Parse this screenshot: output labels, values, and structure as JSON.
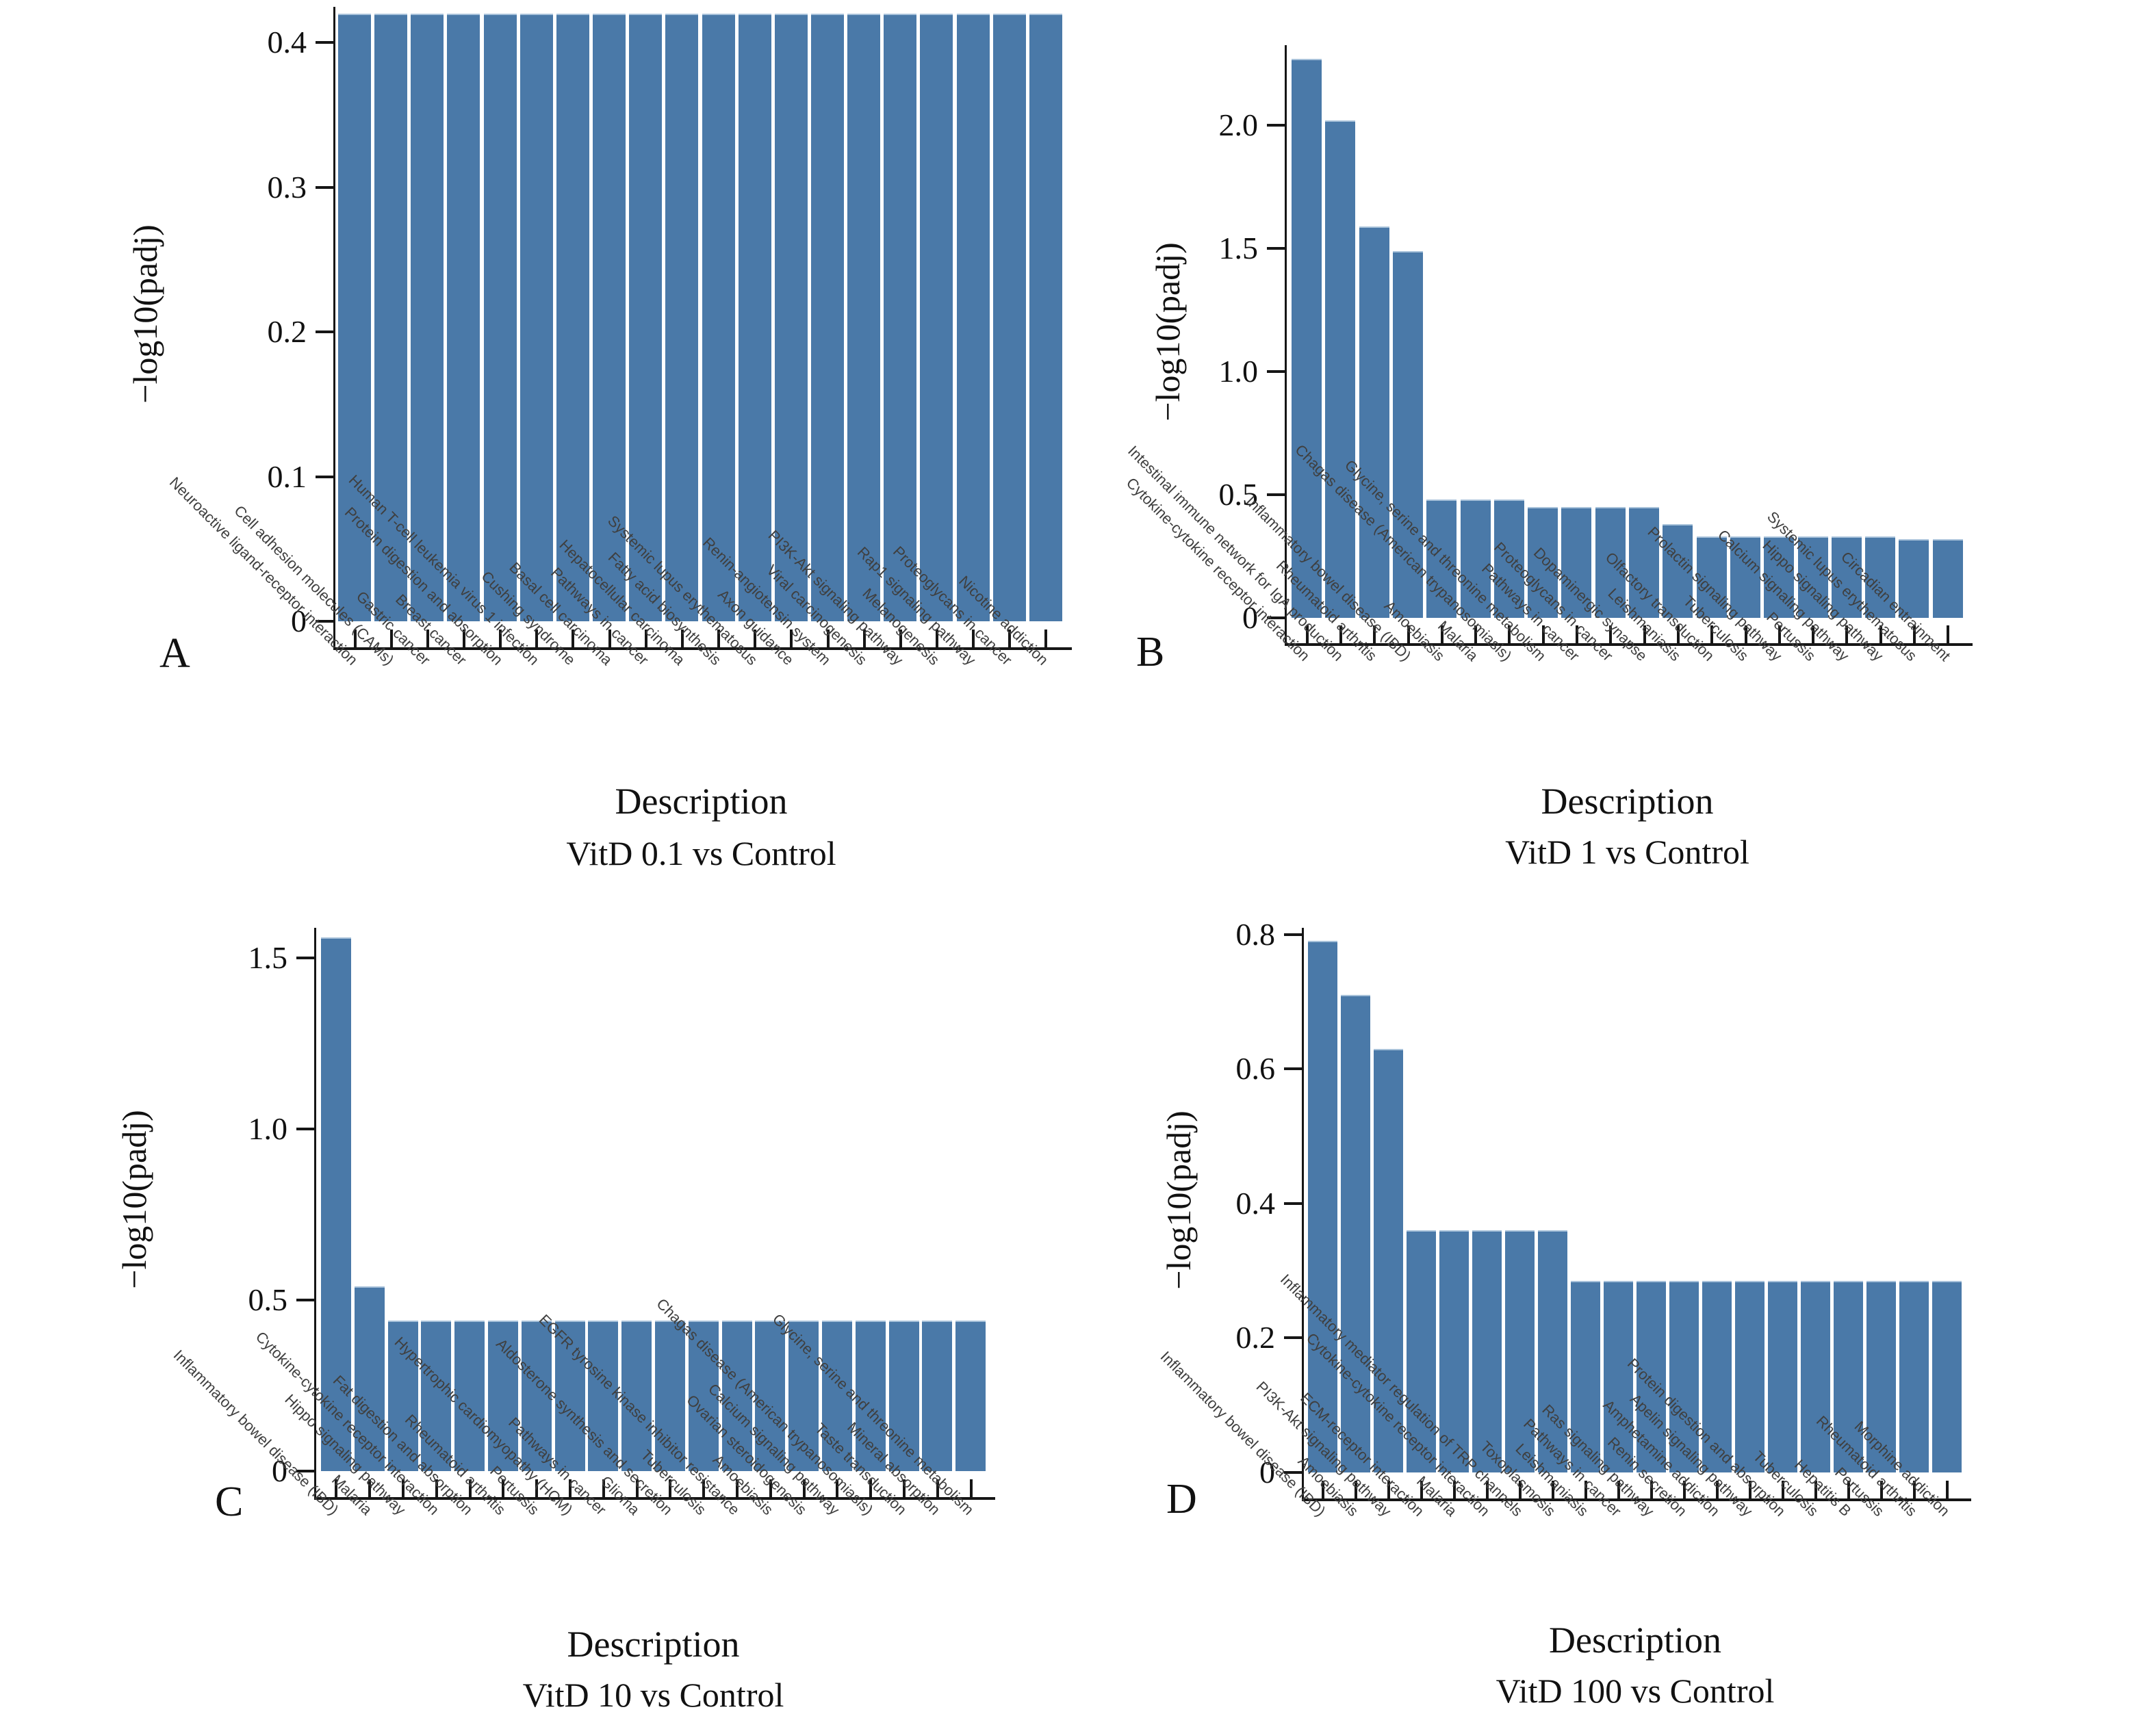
{
  "figure": {
    "background": "#ffffff",
    "bar_color": "#4a79a8",
    "axis_color": "#161616",
    "category_label_color": "#3f3f3f",
    "panel_letters": [
      "A",
      "B",
      "C",
      "D"
    ]
  },
  "chart_data": [
    {
      "type": "bar",
      "panel": "A",
      "title": "VitD 0.1 vs Control",
      "xlabel": "Description",
      "ylabel": "−log10(padj)",
      "ylim": [
        0,
        0.43
      ],
      "grid": false,
      "legend": "none",
      "ytick_labels": [
        "0",
        "0.1",
        "0.2",
        "0.3",
        "0.4"
      ],
      "ytick_values": [
        0,
        0.1,
        0.2,
        0.3,
        0.4
      ],
      "categories": [
        "Neuroactive ligand-receptor interaction",
        "Cell adhesion molecules (CAMs)",
        "Gastric cancer",
        "Breast cancer",
        "Protein digestion and absorption",
        "Human T-cell leukemia virus 1 infection",
        "Cushing syndrome",
        "Basal cell carcinoma",
        "Pathways in cancer",
        "Hepatocellular carcinoma",
        "Fatty acid biosynthesis",
        "Systemic lupus erythematosus",
        "Axon guidance",
        "Renin-angiotensin system",
        "Viral carcinogenesis",
        "PI3K-Akt signaling pathway",
        "Melanogenesis",
        "Rap1 signaling pathway",
        "Proteoglycans in cancer",
        "Nicotine addiction"
      ],
      "values": [
        0.42,
        0.42,
        0.42,
        0.42,
        0.42,
        0.42,
        0.42,
        0.42,
        0.42,
        0.42,
        0.42,
        0.42,
        0.42,
        0.42,
        0.42,
        0.42,
        0.42,
        0.42,
        0.42,
        0.42
      ]
    },
    {
      "type": "bar",
      "panel": "B",
      "title": "VitD 1 vs Control",
      "xlabel": "Description",
      "ylabel": "−log10(padj)",
      "ylim": [
        0,
        2.33
      ],
      "grid": false,
      "legend": "none",
      "ytick_labels": [
        "0",
        "0.5",
        "1.0",
        "1.5",
        "2.0"
      ],
      "ytick_values": [
        0,
        0.5,
        1.0,
        1.5,
        2.0
      ],
      "categories": [
        "Cytokine-cytokine receptor interaction",
        "Intestinal immune network for IgA production",
        "Rheumatoid arthritis",
        "Inflammatory bowel disease (IBD)",
        "Amoebiasis",
        "Malaria",
        "Chagas disease (American trypanosomiasis)",
        "Glycine, serine and threonine metabolism",
        "Pathways in cancer",
        "Proteoglycans in cancer",
        "Dopaminergic synapse",
        "Leishmaniasis",
        "Olfactory transduction",
        "Tuberculosis",
        "Prolactin signaling pathway",
        "Pertussis",
        "Calcium signaling pathway",
        "Hippo signaling pathway",
        "Systemic lupus erythematosus",
        "Circadian entrainment"
      ],
      "values": [
        2.27,
        2.02,
        1.59,
        1.49,
        0.48,
        0.48,
        0.48,
        0.45,
        0.45,
        0.45,
        0.45,
        0.38,
        0.33,
        0.33,
        0.33,
        0.33,
        0.33,
        0.33,
        0.32,
        0.32
      ]
    },
    {
      "type": "bar",
      "panel": "C",
      "title": "VitD 10 vs Control",
      "xlabel": "Description",
      "ylabel": "−log10(padj)",
      "ylim": [
        0,
        1.6
      ],
      "grid": false,
      "legend": "none",
      "ytick_labels": [
        "0",
        "0.5",
        "1.0",
        "1.5"
      ],
      "ytick_values": [
        0,
        0.5,
        1.0,
        1.5
      ],
      "categories": [
        "Inflammatory bowel disease (IBD)",
        "Malaria",
        "Hippo signaling pathway",
        "Cytokine-cytokine receptor interaction",
        "Fat digestion and absorption",
        "Rheumatoid arthritis",
        "Pertussis",
        "Hypertrophic cardiomyopathy (HCM)",
        "Pathways in cancer",
        "Glioma",
        "Aldosterone synthesis and secretion",
        "Tuberculosis",
        "EGFR tyrosine kinase inhibitor resistance",
        "Amoebiasis",
        "Ovarian steroidogenesis",
        "Calcium signaling pathway",
        "Chagas disease (American trypanosomiasis)",
        "Taste transduction",
        "Mineral absorption",
        "Glycine, serine and threonine metabolism"
      ],
      "values": [
        1.56,
        0.54,
        0.44,
        0.44,
        0.44,
        0.44,
        0.44,
        0.44,
        0.44,
        0.44,
        0.44,
        0.44,
        0.44,
        0.44,
        0.44,
        0.44,
        0.44,
        0.44,
        0.44,
        0.44
      ]
    },
    {
      "type": "bar",
      "panel": "D",
      "title": "VitD 100 vs Control",
      "xlabel": "Description",
      "ylabel": "−log10(padj)",
      "ylim": [
        0,
        0.8
      ],
      "grid": false,
      "legend": "none",
      "ytick_labels": [
        "0",
        "0.2",
        "0.4",
        "0.6",
        "0.8"
      ],
      "ytick_values": [
        0,
        0.2,
        0.4,
        0.6,
        0.8
      ],
      "categories": [
        "Inflammatory bowel disease (IBD)",
        "Amoebiasis",
        "PI3K-Akt signaling pathway",
        "ECM-receptor interaction",
        "Malaria",
        "Cytokine-cytokine receptor interaction",
        "Inflammatory mediator regulation of TRP channels",
        "Toxoplasmosis",
        "Leishmaniasis",
        "Pathways in cancer",
        "Ras signaling pathway",
        "Renin secretion",
        "Amphetamine addiction",
        "Apelin signaling pathway",
        "Protein digestion and absorption",
        "Tuberculosis",
        "Hepatitis B",
        "Pertussis",
        "Rheumatoid arthritis",
        "Morphine addiction"
      ],
      "values": [
        0.79,
        0.71,
        0.63,
        0.36,
        0.36,
        0.36,
        0.36,
        0.36,
        0.285,
        0.285,
        0.285,
        0.285,
        0.285,
        0.285,
        0.285,
        0.285,
        0.285,
        0.285,
        0.285,
        0.285
      ]
    }
  ]
}
